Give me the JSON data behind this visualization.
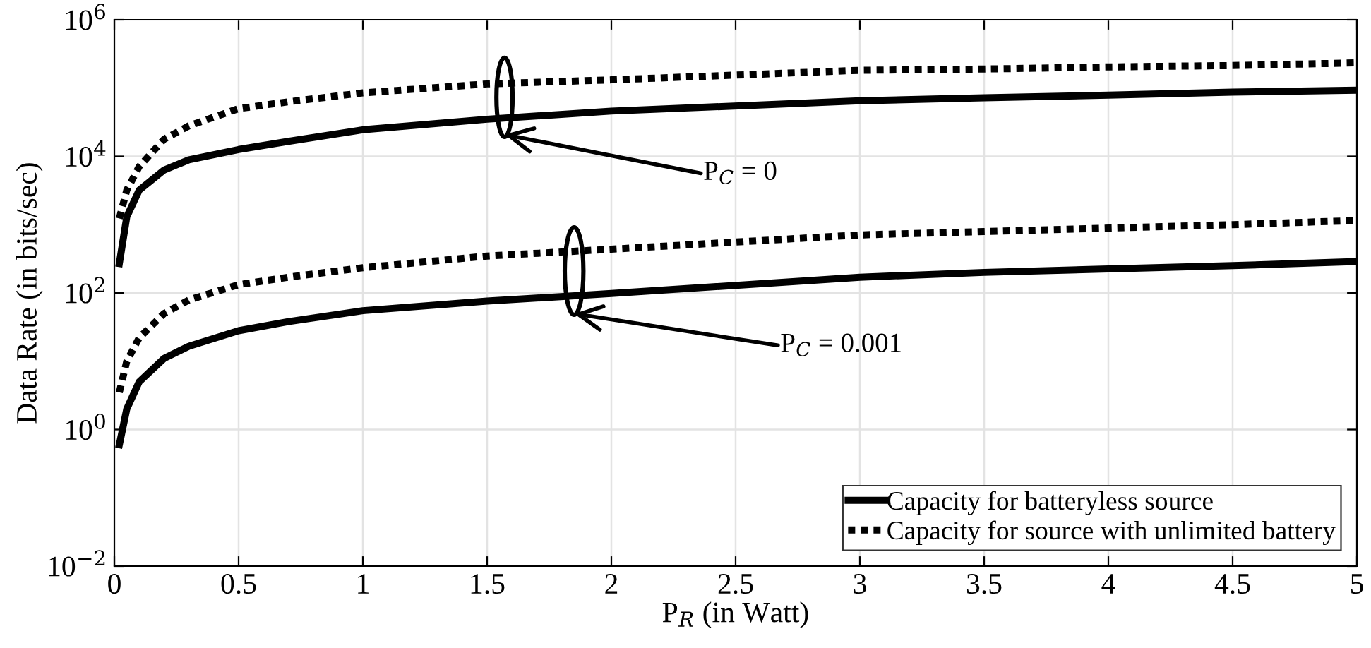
{
  "chart_data": {
    "type": "line",
    "xlabel": "P$_{R}$ (in Watt)",
    "ylabel": "Data Rate (in bits/sec)",
    "xlim": [
      0,
      5
    ],
    "xticks": [
      0,
      0.5,
      1,
      1.5,
      2,
      2.5,
      3,
      3.5,
      4,
      4.5,
      5
    ],
    "ylim": [
      0.01,
      1000000
    ],
    "yticks": [
      {
        "value": 0.01,
        "label": "10$^{−2}$"
      },
      {
        "value": 1,
        "label": "10$^{0}$"
      },
      {
        "value": 100,
        "label": "10$^{2}$"
      },
      {
        "value": 10000,
        "label": "10$^{4}$"
      },
      {
        "value": 1000000,
        "label": "10$^{6}$"
      }
    ],
    "log": "y",
    "grid": true,
    "legend": "bottom right",
    "x": [
      0.02,
      0.05,
      0.1,
      0.2,
      0.3,
      0.5,
      0.7,
      1,
      1.5,
      2,
      3,
      3.5,
      4,
      4.5,
      5
    ],
    "series": [
      {
        "name": "Capacity for batteryless source",
        "color": "#000000",
        "line_style": "solid",
        "values": [
          270,
          1300,
          3200,
          6300,
          8900,
          12600,
          16600,
          24500,
          35000,
          46000,
          65000,
          72000,
          79000,
          87000,
          93000
        ]
      },
      {
        "name": "Capacity for source with unlimited battery",
        "color": "#000000",
        "line_style": "dotted",
        "values": [
          1230,
          3200,
          7100,
          17800,
          28000,
          50000,
          63000,
          85000,
          115000,
          132000,
          182000,
          190000,
          204000,
          214000,
          234000
        ]
      },
      {
        "color": "#000000",
        "line_style": "solid",
        "values": [
          0.6,
          2.0,
          5.0,
          11,
          16.6,
          28,
          38,
          55,
          76,
          98,
          170,
          200,
          224,
          251,
          288
        ]
      },
      {
        "color": "#000000",
        "line_style": "dotted",
        "values": [
          3.5,
          10,
          22,
          50,
          79,
          132,
          170,
          234,
          347,
          437,
          708,
          794,
          891,
          1000,
          1150
        ]
      }
    ],
    "annotations": [
      "P$_{C}$ = 0",
      "P$_{C}$ = 0.001"
    ]
  }
}
